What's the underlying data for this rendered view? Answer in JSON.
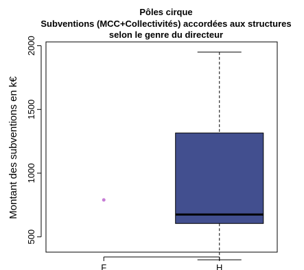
{
  "chart_data": {
    "type": "boxplot",
    "title_lines": [
      "Pôles cirque",
      "Subventions (MCC+Collectivités) accordées aux structures",
      "selon le genre du directeur"
    ],
    "xlabel": "",
    "ylabel": "Montant des subventions en k€",
    "ylim": [
      380,
      2030
    ],
    "yticks": [
      500,
      1000,
      1500,
      2000
    ],
    "grid": false,
    "categories": [
      "F",
      "H"
    ],
    "series": [
      {
        "category": "F",
        "kind": "point",
        "value": 790,
        "color": "#c77dd6"
      },
      {
        "category": "H",
        "kind": "box",
        "min": 320,
        "q1": 605,
        "median": 675,
        "q3": 1315,
        "max": 1950,
        "color": "#424f8f"
      }
    ]
  }
}
